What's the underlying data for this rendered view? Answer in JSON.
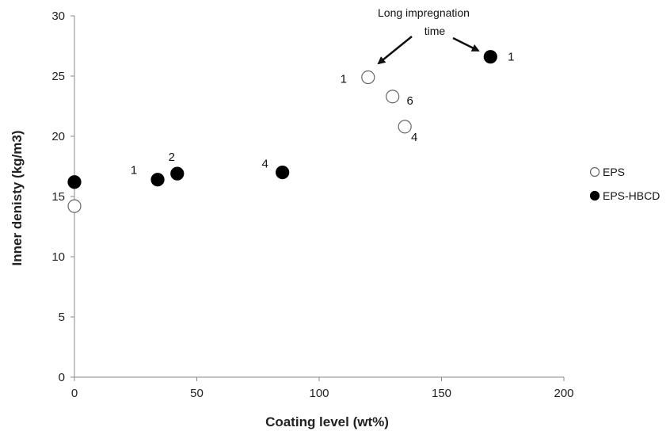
{
  "chart_data": {
    "type": "scatter",
    "xlabel": "Coating level (wt%)",
    "ylabel": "Inner denisty (kg/m3)",
    "xlim": [
      0,
      200
    ],
    "ylim": [
      0,
      30
    ],
    "xticks": [
      0,
      50,
      100,
      150,
      200
    ],
    "yticks": [
      0,
      5,
      10,
      15,
      20,
      25,
      30
    ],
    "xtick_labels": [
      "0",
      "50",
      "100",
      "150",
      "200"
    ],
    "ytick_labels": [
      "0",
      "5",
      "10",
      "15",
      "20",
      "25",
      "30"
    ],
    "grid": false,
    "legend_position": "right",
    "series": [
      {
        "name": "EPS",
        "marker": "open-circle",
        "color": "#000000",
        "points": [
          {
            "x": 0,
            "y": 14.2,
            "label": ""
          },
          {
            "x": 120,
            "y": 24.9,
            "label": "1"
          },
          {
            "x": 130,
            "y": 23.3,
            "label": "6"
          },
          {
            "x": 135,
            "y": 20.8,
            "label": "4"
          }
        ]
      },
      {
        "name": "EPS-HBCD",
        "marker": "filled-circle",
        "color": "#000000",
        "points": [
          {
            "x": 0,
            "y": 16.2,
            "label": ""
          },
          {
            "x": 34,
            "y": 16.4,
            "label": "1"
          },
          {
            "x": 42,
            "y": 16.9,
            "label": "2"
          },
          {
            "x": 85,
            "y": 17.0,
            "label": "4"
          },
          {
            "x": 170,
            "y": 26.6,
            "label": "1"
          }
        ]
      }
    ],
    "annotation": {
      "lines": [
        "Long impregnation",
        "time"
      ]
    }
  }
}
